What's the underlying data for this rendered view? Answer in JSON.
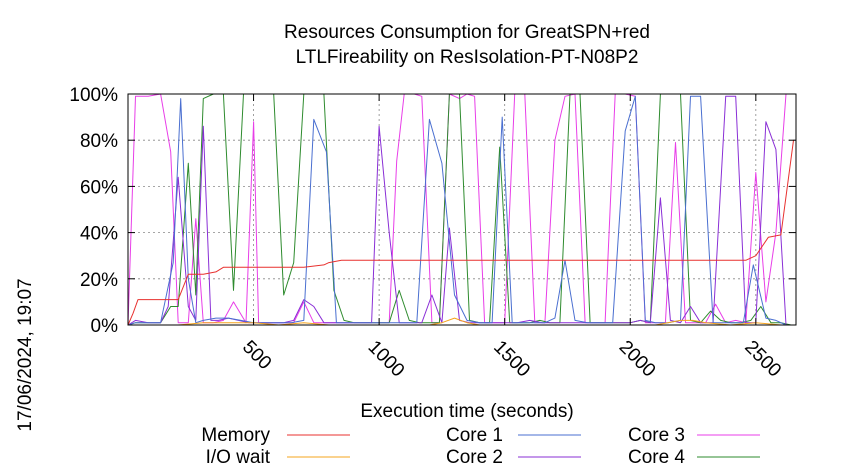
{
  "chart_data": {
    "type": "line",
    "title": "Resources Consumption for GreatSPN+red",
    "subtitle": "LTLFireability on ResIsolation-PT-N08P2",
    "xlabel": "Execution time (seconds)",
    "ylabel": "",
    "side_label": "17/06/2024, 19:07",
    "xlim": [
      0,
      2660
    ],
    "ylim": [
      0,
      100
    ],
    "x_ticks": [
      500,
      1000,
      1500,
      2000,
      2500
    ],
    "y_ticks": [
      0,
      20,
      40,
      60,
      80,
      100
    ],
    "y_tick_suffix": "%",
    "grid": true,
    "legend_position": "bottom",
    "series": [
      {
        "name": "Memory",
        "color": "#e8312f",
        "x": [
          0,
          20,
          40,
          100,
          150,
          200,
          240,
          300,
          350,
          380,
          400,
          500,
          600,
          700,
          780,
          800,
          850,
          1000,
          1100,
          1200,
          1300,
          1400,
          1500,
          1600,
          1700,
          1800,
          1900,
          2000,
          2100,
          2200,
          2300,
          2400,
          2460,
          2500,
          2550,
          2600,
          2650
        ],
        "y": [
          0,
          5,
          11,
          11,
          11,
          11,
          22,
          22,
          23,
          25,
          25,
          25,
          25,
          25,
          26,
          27,
          28,
          28,
          28,
          28,
          28,
          28,
          28,
          28,
          28,
          28,
          28,
          28,
          28,
          28,
          28,
          28,
          28,
          30,
          38,
          39,
          80
        ]
      },
      {
        "name": "I/O wait",
        "color": "#f5a41e",
        "x": [
          0,
          100,
          200,
          300,
          400,
          500,
          600,
          700,
          800,
          900,
          1000,
          1100,
          1200,
          1250,
          1300,
          1350,
          1400,
          1500,
          1600,
          1700,
          1800,
          1900,
          2000,
          2100,
          2150,
          2200,
          2250,
          2300,
          2400,
          2500,
          2600,
          2650
        ],
        "y": [
          0,
          0,
          0,
          1,
          1,
          1,
          0,
          1,
          0,
          0,
          0,
          0,
          0,
          1,
          3,
          1,
          0,
          0,
          0,
          0,
          0,
          0,
          0,
          0,
          1,
          2,
          2,
          1,
          0,
          1,
          0,
          0
        ]
      },
      {
        "name": "Core 1",
        "color": "#4a6fd0",
        "x": [
          0,
          30,
          80,
          130,
          180,
          210,
          240,
          270,
          300,
          350,
          400,
          450,
          500,
          550,
          600,
          650,
          700,
          740,
          790,
          830,
          880,
          950,
          1000,
          1050,
          1100,
          1150,
          1200,
          1250,
          1300,
          1350,
          1400,
          1450,
          1490,
          1530,
          1580,
          1620,
          1660,
          1700,
          1740,
          1780,
          1830,
          1880,
          1930,
          1980,
          2020,
          2060,
          2100,
          2150,
          2200,
          2240,
          2280,
          2330,
          2370,
          2410,
          2450,
          2490,
          2540,
          2580,
          2620
        ],
        "y": [
          0,
          1,
          1,
          1,
          27,
          98,
          20,
          1,
          2,
          3,
          3,
          2,
          1,
          1,
          1,
          1,
          2,
          89,
          75,
          1,
          1,
          1,
          1,
          1,
          1,
          1,
          89,
          70,
          13,
          2,
          1,
          1,
          90,
          1,
          1,
          1,
          1,
          3,
          28,
          2,
          1,
          1,
          1,
          84,
          99,
          2,
          1,
          1,
          2,
          99,
          99,
          1,
          1,
          1,
          1,
          26,
          3,
          2,
          0
        ]
      },
      {
        "name": "Core 2",
        "color": "#8a2fd6",
        "x": [
          0,
          30,
          80,
          130,
          160,
          200,
          240,
          270,
          300,
          330,
          360,
          400,
          440,
          480,
          530,
          580,
          620,
          660,
          700,
          740,
          780,
          820,
          870,
          920,
          970,
          1000,
          1040,
          1080,
          1120,
          1170,
          1210,
          1250,
          1280,
          1320,
          1360,
          1400,
          1450,
          1500,
          1550,
          1600,
          1650,
          1700,
          1750,
          1800,
          1850,
          1900,
          1950,
          2000,
          2040,
          2080,
          2120,
          2160,
          2200,
          2240,
          2280,
          2330,
          2380,
          2420,
          2460,
          2500,
          2540,
          2580,
          2620
        ],
        "y": [
          0,
          2,
          1,
          1,
          8,
          64,
          8,
          2,
          86,
          2,
          2,
          3,
          2,
          1,
          1,
          1,
          1,
          2,
          11,
          8,
          1,
          1,
          1,
          1,
          1,
          86,
          40,
          1,
          1,
          1,
          13,
          1,
          42,
          2,
          1,
          1,
          1,
          1,
          1,
          2,
          1,
          1,
          1,
          1,
          1,
          1,
          1,
          1,
          2,
          1,
          55,
          2,
          1,
          8,
          1,
          1,
          99,
          99,
          1,
          1,
          88,
          76,
          0
        ]
      },
      {
        "name": "Core 3",
        "color": "#e83ee8",
        "x": [
          0,
          30,
          80,
          130,
          170,
          200,
          240,
          270,
          300,
          340,
          380,
          420,
          470,
          500,
          520,
          550,
          580,
          620,
          660,
          700,
          740,
          790,
          830,
          880,
          930,
          980,
          1000,
          1040,
          1070,
          1100,
          1140,
          1170,
          1210,
          1240,
          1280,
          1320,
          1350,
          1380,
          1420,
          1460,
          1500,
          1540,
          1580,
          1620,
          1660,
          1700,
          1740,
          1780,
          1820,
          1860,
          1900,
          1940,
          1980,
          2020,
          2060,
          2100,
          2140,
          2180,
          2220,
          2260,
          2300,
          2340,
          2380,
          2420,
          2460,
          2500,
          2540,
          2580,
          2620
        ],
        "y": [
          0,
          99,
          99,
          100,
          75,
          1,
          1,
          46,
          1,
          1,
          2,
          10,
          1,
          88,
          1,
          1,
          1,
          1,
          1,
          10,
          1,
          1,
          1,
          1,
          1,
          1,
          1,
          1,
          71,
          100,
          100,
          99,
          1,
          1,
          100,
          98,
          100,
          99,
          1,
          1,
          1,
          100,
          100,
          1,
          1,
          80,
          99,
          100,
          1,
          1,
          1,
          100,
          100,
          99,
          1,
          1,
          1,
          79,
          1,
          1,
          1,
          9,
          1,
          2,
          1,
          66,
          10,
          40,
          100
        ]
      },
      {
        "name": "Core 4",
        "color": "#2e8b2e",
        "x": [
          0,
          30,
          80,
          130,
          170,
          200,
          240,
          270,
          300,
          340,
          380,
          420,
          460,
          500,
          540,
          580,
          620,
          660,
          700,
          740,
          780,
          820,
          860,
          900,
          940,
          980,
          1000,
          1040,
          1080,
          1120,
          1160,
          1200,
          1240,
          1280,
          1320,
          1360,
          1400,
          1440,
          1480,
          1520,
          1560,
          1600,
          1640,
          1680,
          1720,
          1760,
          1800,
          1840,
          1880,
          1920,
          1960,
          2000,
          2040,
          2080,
          2120,
          2160,
          2200,
          2240,
          2280,
          2320,
          2360,
          2400,
          2440,
          2480,
          2520,
          2560,
          2600,
          2640
        ],
        "y": [
          0,
          1,
          1,
          1,
          8,
          8,
          70,
          13,
          98,
          100,
          100,
          15,
          100,
          100,
          100,
          100,
          13,
          27,
          100,
          100,
          100,
          15,
          2,
          1,
          1,
          1,
          1,
          1,
          15,
          2,
          1,
          1,
          1,
          100,
          100,
          2,
          1,
          1,
          77,
          1,
          1,
          1,
          2,
          1,
          1,
          100,
          100,
          1,
          1,
          1,
          1,
          1,
          2,
          1,
          100,
          100,
          100,
          2,
          1,
          6,
          2,
          1,
          1,
          2,
          8,
          1,
          1,
          0
        ]
      }
    ]
  }
}
